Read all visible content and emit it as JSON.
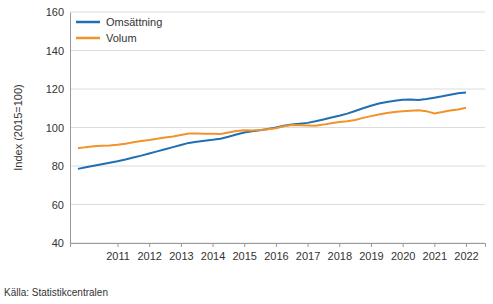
{
  "chart_data": {
    "type": "line",
    "y_label": "Index (2015=100)",
    "caption": "Källa: Statistikcentralen",
    "x": [
      2009.75,
      2010,
      2010.25,
      2010.5,
      2010.75,
      2011,
      2011.25,
      2011.5,
      2011.75,
      2012,
      2012.25,
      2012.5,
      2012.75,
      2013,
      2013.25,
      2013.5,
      2013.75,
      2014,
      2014.25,
      2014.5,
      2014.75,
      2015,
      2015.25,
      2015.5,
      2015.75,
      2016,
      2016.25,
      2016.5,
      2016.75,
      2017,
      2017.25,
      2017.5,
      2017.75,
      2018,
      2018.25,
      2018.5,
      2018.75,
      2019,
      2019.25,
      2019.5,
      2019.75,
      2020,
      2020.25,
      2020.5,
      2020.75,
      2021,
      2021.25,
      2021.5,
      2021.75,
      2022
    ],
    "series": [
      {
        "name": "Omsättning",
        "color": "#1f6fb2",
        "values": [
          78.5,
          79.3,
          80.1,
          80.9,
          81.7,
          82.5,
          83.4,
          84.4,
          85.4,
          86.5,
          87.6,
          88.7,
          89.8,
          90.9,
          92.0,
          92.6,
          93.1,
          93.6,
          94.2,
          95.2,
          96.4,
          97.4,
          98.0,
          98.6,
          99.2,
          100.0,
          100.9,
          101.6,
          102.0,
          102.4,
          103.2,
          104.2,
          105.2,
          106.1,
          107.2,
          108.6,
          110.0,
          111.3,
          112.5,
          113.3,
          113.9,
          114.4,
          114.5,
          114.3,
          114.8,
          115.5,
          116.2,
          117.0,
          117.8,
          118.2
        ]
      },
      {
        "name": "Volum",
        "color": "#f0932b",
        "values": [
          89.2,
          89.8,
          90.3,
          90.5,
          90.6,
          91.0,
          91.6,
          92.3,
          93.0,
          93.5,
          94.1,
          94.8,
          95.3,
          96.1,
          96.9,
          96.9,
          96.8,
          96.7,
          96.6,
          97.4,
          98.2,
          98.6,
          98.4,
          98.7,
          99.1,
          99.6,
          100.6,
          101.3,
          101.2,
          101.1,
          100.9,
          101.5,
          102.2,
          102.8,
          103.2,
          103.9,
          105.0,
          105.9,
          106.8,
          107.5,
          108.0,
          108.4,
          108.7,
          108.9,
          108.5,
          107.3,
          108.0,
          108.8,
          109.4,
          110.3
        ]
      }
    ],
    "xlim": [
      2009.5,
      2022.6
    ],
    "xticks": [
      2011,
      2012,
      2013,
      2014,
      2015,
      2016,
      2017,
      2018,
      2019,
      2020,
      2021,
      2022
    ],
    "ylim": [
      40,
      160
    ],
    "yticks": [
      40,
      60,
      80,
      100,
      120,
      140,
      160
    ],
    "grid": true,
    "legend": "upper left"
  }
}
